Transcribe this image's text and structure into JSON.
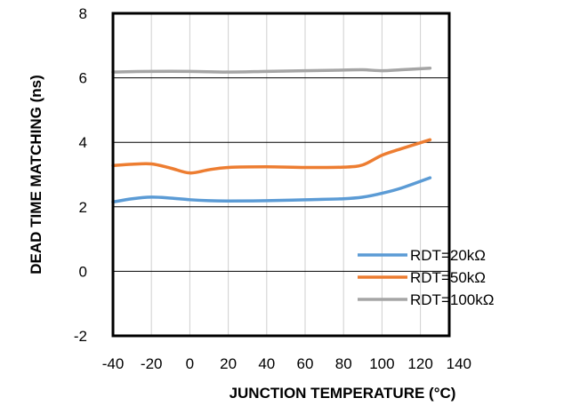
{
  "chart_data": {
    "type": "line",
    "title": "",
    "xlabel": "JUNCTION TEMPERATURE (°C)",
    "ylabel": "DEAD TIME MATCHING (ns)",
    "xlim": [
      -40,
      140
    ],
    "ylim": [
      -2,
      8
    ],
    "xticks": [
      "-40",
      "-20",
      "0",
      "20",
      "40",
      "60",
      "80",
      "100",
      "120",
      "140"
    ],
    "yticks": [
      "-2",
      "0",
      "2",
      "4",
      "6",
      "8"
    ],
    "grid": true,
    "legend_position": "bottom-right",
    "series": [
      {
        "name": "RDT=20kΩ",
        "color": "#5B9BD5",
        "points": [
          [
            -40,
            2.15
          ],
          [
            -30,
            2.25
          ],
          [
            -20,
            2.3
          ],
          [
            -10,
            2.27
          ],
          [
            0,
            2.22
          ],
          [
            10,
            2.19
          ],
          [
            20,
            2.18
          ],
          [
            40,
            2.19
          ],
          [
            60,
            2.22
          ],
          [
            80,
            2.25
          ],
          [
            90,
            2.3
          ],
          [
            100,
            2.42
          ],
          [
            110,
            2.58
          ],
          [
            125,
            2.9
          ]
        ]
      },
      {
        "name": "RDT=50kΩ",
        "color": "#ED7D31",
        "points": [
          [
            -40,
            3.28
          ],
          [
            -30,
            3.32
          ],
          [
            -20,
            3.33
          ],
          [
            -10,
            3.2
          ],
          [
            0,
            3.05
          ],
          [
            10,
            3.15
          ],
          [
            20,
            3.22
          ],
          [
            40,
            3.24
          ],
          [
            60,
            3.22
          ],
          [
            80,
            3.23
          ],
          [
            90,
            3.3
          ],
          [
            100,
            3.6
          ],
          [
            110,
            3.8
          ],
          [
            125,
            4.08
          ]
        ]
      },
      {
        "name": "RDT=100kΩ",
        "color": "#A5A5A5",
        "points": [
          [
            -40,
            6.18
          ],
          [
            -20,
            6.2
          ],
          [
            0,
            6.2
          ],
          [
            20,
            6.18
          ],
          [
            40,
            6.2
          ],
          [
            60,
            6.22
          ],
          [
            80,
            6.24
          ],
          [
            90,
            6.25
          ],
          [
            100,
            6.22
          ],
          [
            110,
            6.25
          ],
          [
            125,
            6.3
          ]
        ]
      }
    ]
  }
}
